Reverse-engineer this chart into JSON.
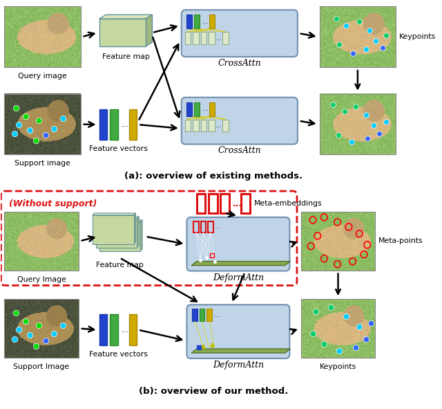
{
  "fig_width": 6.4,
  "fig_height": 5.91,
  "bg_color": "#ffffff",
  "title_a": "(a): overview of existing methods.",
  "title_b": "(b): overview of our method.",
  "section_b_label": "(Without support)",
  "meta_embed_label": "Meta-embeddings",
  "meta_points_label": "Meta-points",
  "keypoints_label": "Keypoints",
  "crossattn_label": "CrossAttn",
  "deformattn_label": "DeformAttn",
  "query_image_label": "Query image",
  "support_image_label": "Support image",
  "query_image_b_label": "Query Image",
  "support_image_b_label": "Support Image",
  "feature_map_label": "Feature map",
  "feature_vectors_label": "Feature vectors",
  "crossattn_bg": "#c0d4e8",
  "deformattn_bg": "#c0d4e8",
  "crossattn_edge": "#7090b0",
  "feature_map_color": "#c5d8a0",
  "feature_map_edge": "#6090a0",
  "feature_map_top": "#dce8b8",
  "feature_map_side": "#a0b880",
  "fv_blue": "#2244cc",
  "fv_green": "#44aa44",
  "fv_yellow": "#ccaa00",
  "meta_embed_color": "#dd1111",
  "arrow_color": "#000000",
  "dashed_box_color": "#dd1111",
  "img_lion1_main": "#c8a870",
  "img_lion1_bg": "#8aaa60",
  "img_lion2_main": "#b09050",
  "img_lion2_bg": "#506040",
  "img_lion_out_main": "#c8a870",
  "img_lion_out_bg": "#90b060",
  "title_fontsize": 9.5,
  "label_fontsize": 7.8,
  "inner_fontsize": 7.0
}
